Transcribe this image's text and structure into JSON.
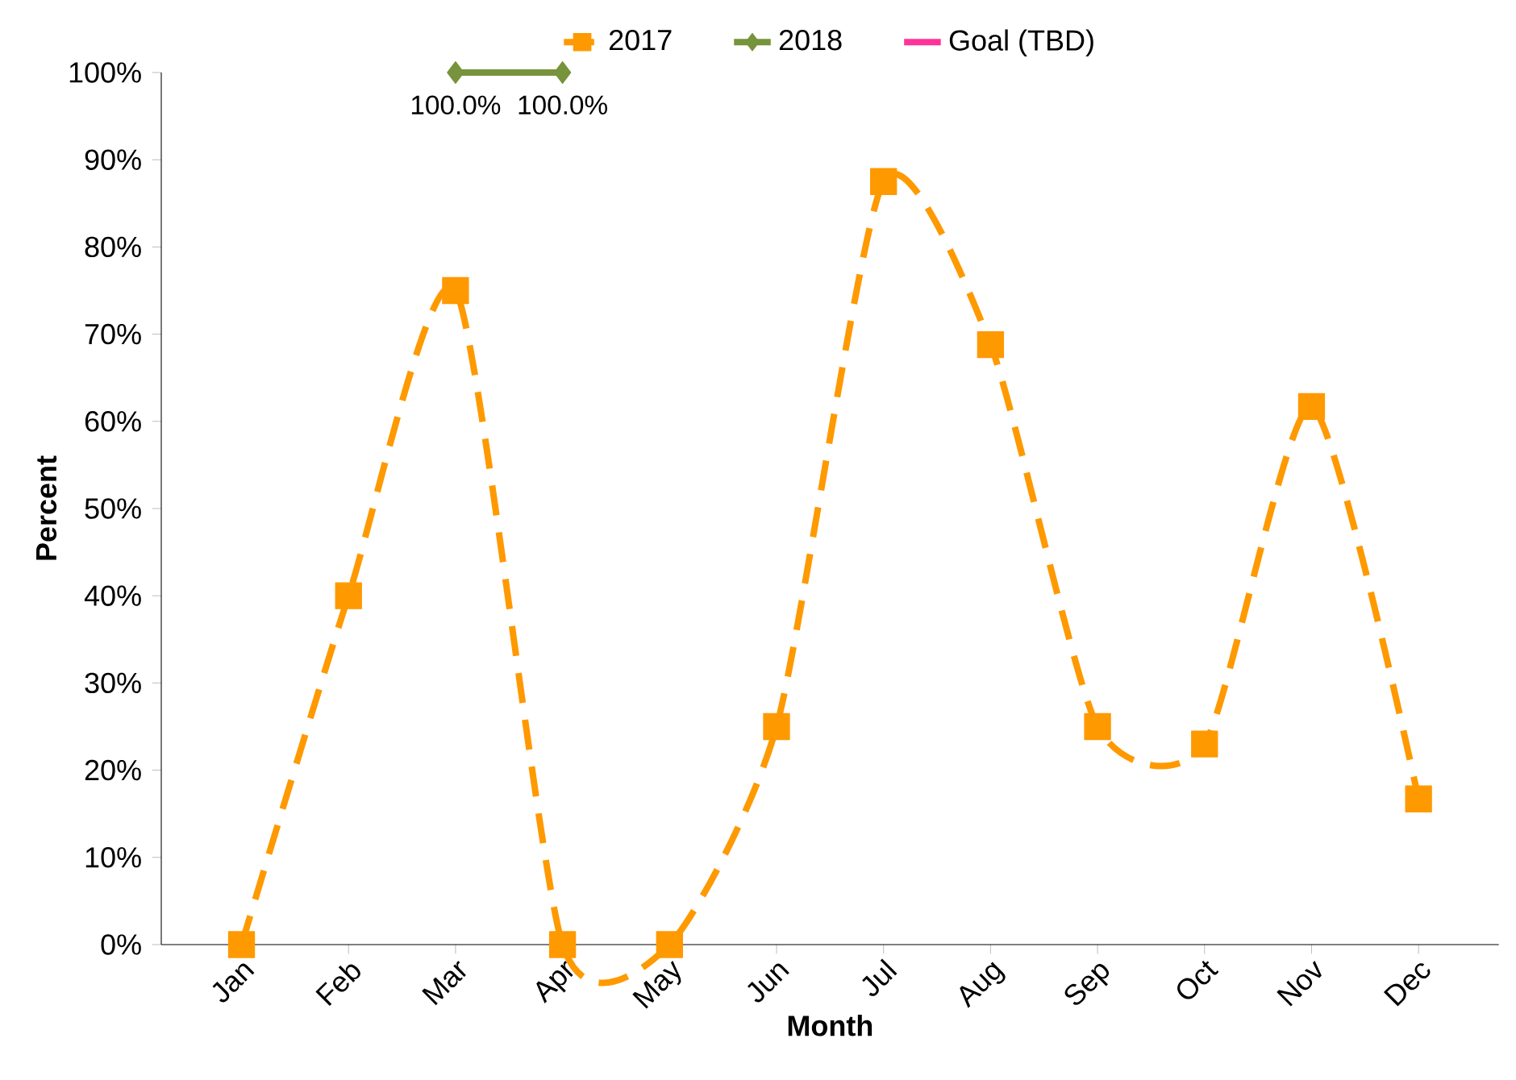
{
  "chart_data": {
    "type": "line",
    "xlabel": "Month",
    "ylabel": "Percent",
    "categories": [
      "Jan",
      "Feb",
      "Mar",
      "Apr",
      "May",
      "Jun",
      "Jul",
      "Aug",
      "Sep",
      "Oct",
      "Nov",
      "Dec"
    ],
    "series": [
      {
        "name": "2017",
        "color": "#ff9900",
        "marker": "square",
        "line_style": "dashed",
        "values": [
          0,
          40,
          75,
          0,
          0,
          25,
          87.5,
          68.8,
          25,
          23,
          61.7,
          16.7
        ]
      },
      {
        "name": "2018",
        "color": "#77933c",
        "marker": "diamond",
        "line_style": "solid",
        "values": [
          null,
          null,
          100,
          100,
          null,
          null,
          null,
          null,
          null,
          null,
          null,
          null
        ],
        "value_labels": [
          null,
          null,
          "100.0%",
          "100.0%",
          null,
          null,
          null,
          null,
          null,
          null,
          null,
          null
        ]
      },
      {
        "name": "Goal (TBD)",
        "color": "#ff3399",
        "marker": "none",
        "line_style": "solid",
        "values": [
          null,
          null,
          null,
          null,
          null,
          null,
          null,
          null,
          null,
          null,
          null,
          null
        ]
      }
    ],
    "ylim": [
      0,
      100
    ],
    "yticks": [
      {
        "value": 0,
        "label": "0%"
      },
      {
        "value": 10,
        "label": "10%"
      },
      {
        "value": 20,
        "label": "20%"
      },
      {
        "value": 30,
        "label": "30%"
      },
      {
        "value": 40,
        "label": "40%"
      },
      {
        "value": 50,
        "label": "50%"
      },
      {
        "value": 60,
        "label": "60%"
      },
      {
        "value": 70,
        "label": "70%"
      },
      {
        "value": 80,
        "label": "80%"
      },
      {
        "value": 90,
        "label": "90%"
      },
      {
        "value": 100,
        "label": "100%"
      }
    ],
    "grid": false,
    "legend": "top"
  }
}
